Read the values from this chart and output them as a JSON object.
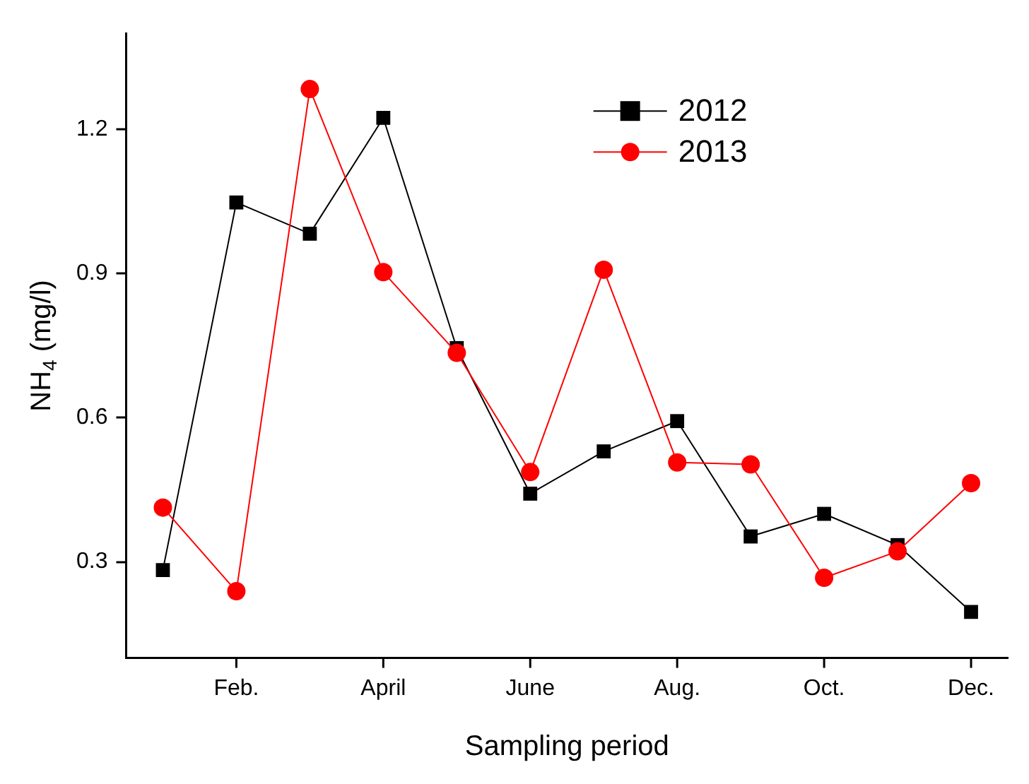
{
  "chart_data": {
    "type": "line",
    "xlabel": "Sampling period",
    "ylabel": "NH$_{4}$ (mg/l)",
    "categories": [
      null,
      "Feb.",
      null,
      "April",
      null,
      "June",
      null,
      "Aug.",
      null,
      "Oct.",
      null,
      "Dec."
    ],
    "series": [
      {
        "name": "2012",
        "color": "#000000",
        "marker": "square",
        "values": [
          0.283,
          1.048,
          0.983,
          1.224,
          0.745,
          0.442,
          0.53,
          0.593,
          0.353,
          0.4,
          0.335,
          0.196
        ]
      },
      {
        "name": "2013",
        "color": "#ff0000",
        "marker": "circle",
        "values": [
          0.413,
          0.239,
          1.284,
          0.903,
          0.735,
          0.487,
          0.908,
          0.507,
          0.503,
          0.267,
          0.322,
          0.464
        ]
      }
    ],
    "ylim": [
      0.1,
      1.4
    ],
    "yticks": [
      0.3,
      0.6,
      0.9,
      1.2
    ],
    "grid": false,
    "legend": "top right",
    "line_style": "solid"
  }
}
